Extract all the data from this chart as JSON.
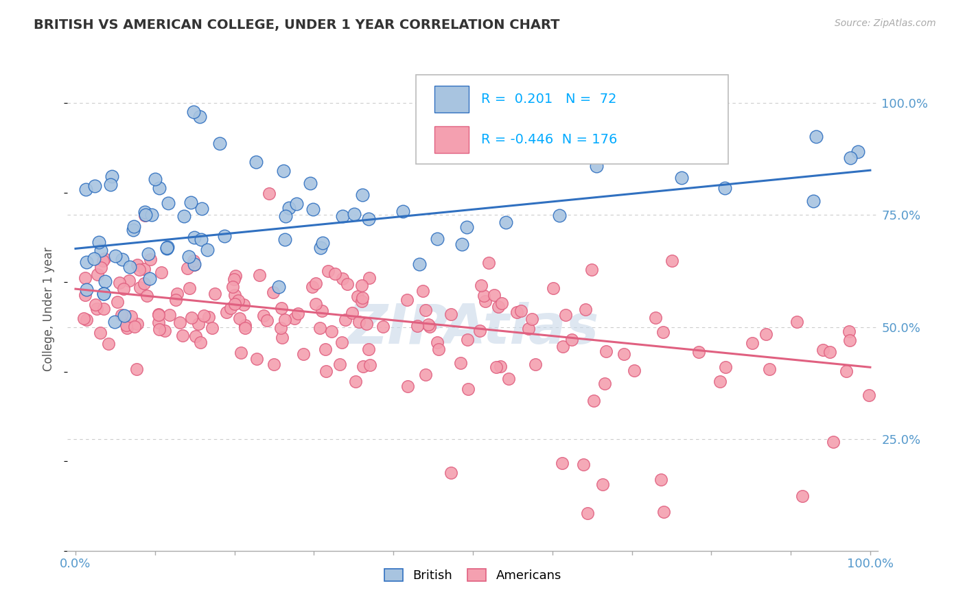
{
  "title": "BRITISH VS AMERICAN COLLEGE, UNDER 1 YEAR CORRELATION CHART",
  "source_text": "Source: ZipAtlas.com",
  "ylabel": "College, Under 1 year",
  "british_R": 0.201,
  "british_N": 72,
  "american_R": -0.446,
  "american_N": 176,
  "british_color": "#a8c4e0",
  "american_color": "#f4a0b0",
  "british_line_color": "#3070c0",
  "american_line_color": "#e06080",
  "legend_R_color": "#00aaff",
  "watermark": "ZIPAtlas",
  "watermark_color": "#c8d8e8",
  "background_color": "#ffffff",
  "grid_color": "#cccccc",
  "title_color": "#333333",
  "brit_reg_intercept": 0.675,
  "brit_reg_slope": 0.175,
  "amer_reg_intercept": 0.585,
  "amer_reg_slope": -0.175
}
